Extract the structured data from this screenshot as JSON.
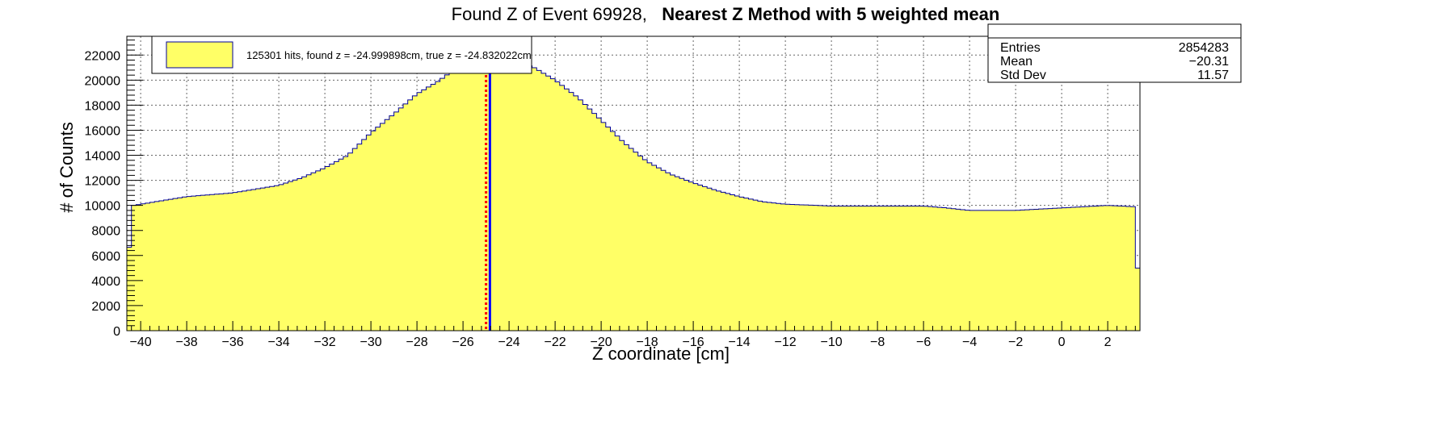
{
  "chart_data": {
    "type": "bar",
    "title": "Found Z of Event 69928,",
    "subtitle": "Nearest Z Method with 5 weighted mean",
    "xlabel": "Z coordinate [cm]",
    "ylabel": "# of Counts",
    "xlim": [
      -40.6,
      3.4
    ],
    "ylim": [
      0,
      23500
    ],
    "x_ticks": [
      -40,
      -38,
      -36,
      -34,
      -32,
      -30,
      -28,
      -26,
      -24,
      -22,
      -20,
      -18,
      -16,
      -14,
      -12,
      -10,
      -8,
      -6,
      -4,
      -2,
      0,
      2
    ],
    "y_ticks": [
      0,
      2000,
      4000,
      6000,
      8000,
      10000,
      12000,
      14000,
      16000,
      18000,
      20000,
      22000
    ],
    "grid": true,
    "histogram_profile": [
      [
        -40.6,
        5000
      ],
      [
        -40.3,
        10000
      ],
      [
        -39,
        10400
      ],
      [
        -38,
        10700
      ],
      [
        -36,
        11000
      ],
      [
        -35,
        11300
      ],
      [
        -34,
        11600
      ],
      [
        -33,
        12200
      ],
      [
        -32,
        13000
      ],
      [
        -31,
        14000
      ],
      [
        -30,
        15800
      ],
      [
        -29,
        17300
      ],
      [
        -28,
        18900
      ],
      [
        -27,
        20000
      ],
      [
        -26.5,
        20700
      ],
      [
        -26,
        21000
      ],
      [
        -25,
        21300
      ],
      [
        -24.5,
        21400
      ],
      [
        -24,
        21400
      ],
      [
        -23,
        21100
      ],
      [
        -22,
        20000
      ],
      [
        -21,
        18600
      ],
      [
        -20,
        16800
      ],
      [
        -19,
        15000
      ],
      [
        -18,
        13500
      ],
      [
        -17,
        12500
      ],
      [
        -16,
        11800
      ],
      [
        -15,
        11200
      ],
      [
        -14,
        10700
      ],
      [
        -13,
        10300
      ],
      [
        -12,
        10100
      ],
      [
        -10,
        9950
      ],
      [
        -8,
        9950
      ],
      [
        -6,
        9950
      ],
      [
        -5,
        9800
      ],
      [
        -4,
        9600
      ],
      [
        -2,
        9600
      ],
      [
        0,
        9800
      ],
      [
        2,
        10000
      ],
      [
        3.1,
        9900
      ],
      [
        3.2,
        5000
      ],
      [
        3.4,
        5000
      ]
    ],
    "bin_width": 0.2,
    "fill_color": "#ffff66",
    "line_color": "#000099",
    "vertical_lines": [
      {
        "x": -24.999898,
        "color": "#ff0000",
        "style": "dotted"
      },
      {
        "x": -24.832022,
        "color": "#0000ff",
        "style": "solid"
      }
    ],
    "legend": {
      "placement": "top-left",
      "entries": [
        "125301 hits, found z = -24.999898cm, true z = -24.832022cm"
      ]
    },
    "stats_box": {
      "placement": "top-right",
      "rows": [
        {
          "label": "Entries",
          "value": "2854283"
        },
        {
          "label": "Mean",
          "value": "−20.31"
        },
        {
          "label": "Std Dev",
          "value": "11.57"
        }
      ]
    }
  }
}
